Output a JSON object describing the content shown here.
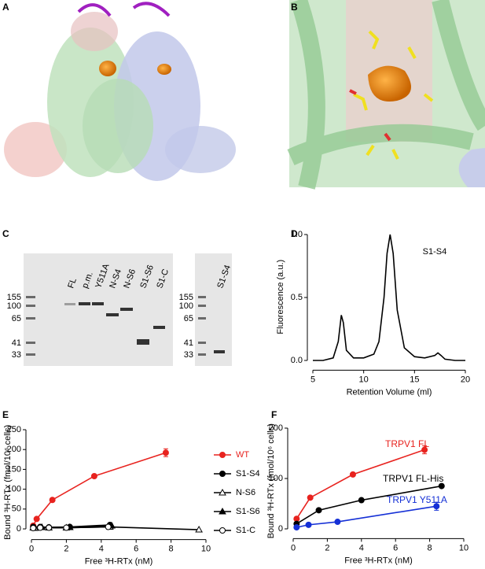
{
  "panels": {
    "labels": [
      "A",
      "B",
      "C",
      "D",
      "E",
      "F"
    ]
  },
  "gel": {
    "lanes": [
      "FL",
      "p.m.",
      "Y511A",
      "N-S4",
      "N-S6",
      "S1-S6",
      "S1-C"
    ],
    "markers": [
      155,
      100,
      65,
      41,
      33
    ],
    "lanes2": [
      "S1-S4"
    ],
    "markers2": [
      155,
      100,
      65,
      41,
      33
    ]
  },
  "chart_data": [
    {
      "type": "line",
      "annotation": "S1-S4",
      "x_label": "Retention Volume (ml)",
      "y_label": "Fluorescence (a.u.)",
      "xlim": [
        5,
        20
      ],
      "xticks": [
        5,
        10,
        15,
        20
      ],
      "ylim": [
        -0.04,
        1.05
      ],
      "yticks": [
        {
          "value": 0,
          "label": "0.0"
        },
        {
          "value": 0.5,
          "label": "0.5"
        },
        {
          "value": 1,
          "label": "1.0"
        }
      ],
      "series": [
        {
          "color": "#000000",
          "x": [
            5,
            6,
            7,
            7.5,
            7.8,
            8,
            8.3,
            9,
            10,
            11,
            11.5,
            12,
            12.3,
            12.6,
            12.9,
            13.3,
            14,
            15,
            16,
            17,
            17.3,
            17.6,
            18,
            19,
            20
          ],
          "values": [
            0,
            0,
            0.02,
            0.15,
            0.36,
            0.3,
            0.08,
            0.02,
            0.02,
            0.05,
            0.15,
            0.5,
            0.85,
            1.0,
            0.85,
            0.4,
            0.1,
            0.03,
            0.02,
            0.04,
            0.06,
            0.04,
            0.01,
            0,
            0
          ]
        }
      ]
    },
    {
      "type": "line",
      "x_label": "Free ³H-RTx (nM)",
      "y_label": "Bound ³H-RTx (fmol/10⁶ cells)",
      "legend": "right",
      "xlim": [
        0,
        10
      ],
      "xticks": [
        0,
        2,
        4,
        6,
        8,
        10
      ],
      "ylim": [
        -15,
        250
      ],
      "yticks": [
        0,
        50,
        100,
        150,
        200,
        250
      ],
      "series": [
        {
          "name": "WT",
          "color": "#e8231f",
          "marker": "circle",
          "x": [
            0.1,
            0.3,
            1.2,
            3.6,
            7.7
          ],
          "values": [
            8,
            25,
            73,
            133,
            192
          ],
          "errors": [
            null,
            null,
            null,
            null,
            10
          ]
        },
        {
          "name": "S1-S4",
          "color": "#000000",
          "marker": "circle",
          "x": [
            0.1,
            0.5,
            1,
            2.2,
            4.5
          ],
          "values": [
            5,
            5,
            4,
            5,
            10
          ]
        },
        {
          "name": "N-S6",
          "color": "#000000",
          "marker": "triangle-open",
          "x": [
            0.2,
            1,
            2,
            4.5,
            9.6
          ],
          "values": [
            2,
            3,
            3,
            5,
            -2
          ]
        },
        {
          "name": "S1-S6",
          "color": "#000000",
          "marker": "triangle",
          "x": [
            0.1,
            0.6,
            2.2,
            4.6
          ],
          "values": [
            3,
            4,
            4,
            8
          ]
        },
        {
          "name": "S1-C",
          "color": "#000000",
          "marker": "circle-open",
          "x": [
            0.1,
            0.5,
            1,
            2,
            4.4
          ],
          "values": [
            2,
            3,
            3,
            3,
            5
          ]
        }
      ]
    },
    {
      "type": "line",
      "x_label": "Free ³H-RTx (nM)",
      "y_label": "Bound ³H-RTx (fmol/10⁶ cells)",
      "xlim": [
        0,
        10
      ],
      "xticks": [
        0,
        2,
        4,
        6,
        8,
        10
      ],
      "ylim": [
        -10,
        200
      ],
      "yticks": [
        0,
        100,
        200
      ],
      "series": [
        {
          "name": "TRPV1 FL",
          "color": "#e8231f",
          "marker": "circle",
          "x": [
            0.2,
            1,
            3.5,
            7.7
          ],
          "values": [
            20,
            62,
            108,
            157
          ],
          "errors": [
            null,
            null,
            null,
            8
          ]
        },
        {
          "name": "TRPV1 FL-His",
          "color": "#000000",
          "marker": "circle",
          "x": [
            0.2,
            1.5,
            4,
            8.7
          ],
          "values": [
            10,
            37,
            57,
            85
          ]
        },
        {
          "name": "TRPV1 Y511A",
          "color": "#1530d6",
          "marker": "circle",
          "x": [
            0.2,
            0.9,
            2.6,
            8.4
          ],
          "values": [
            3,
            8,
            14,
            45
          ],
          "errors": [
            null,
            null,
            null,
            8
          ]
        }
      ]
    }
  ]
}
